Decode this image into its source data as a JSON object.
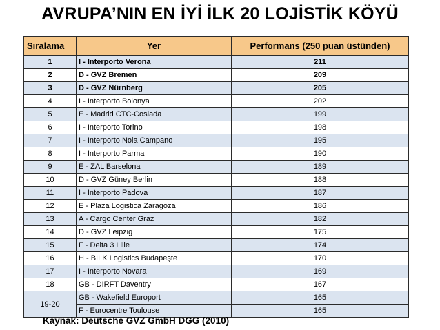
{
  "title": "AVRUPA’NIN EN İYİ İLK 20 LOJİSTİK KÖYÜ",
  "table": {
    "headers": {
      "rank": "Sıralama",
      "place": "Yer",
      "performance": "Performans (250 puan üstünden)"
    },
    "rows": [
      {
        "rank": "1",
        "place": "I - Interporto Verona",
        "performance": "211"
      },
      {
        "rank": "2",
        "place": "D - GVZ Bremen",
        "performance": "209"
      },
      {
        "rank": "3",
        "place": "D - GVZ Nürnberg",
        "performance": "205"
      },
      {
        "rank": "4",
        "place": "I - Interporto Bolonya",
        "performance": "202"
      },
      {
        "rank": "5",
        "place": "E - Madrid CTC-Coslada",
        "performance": "199"
      },
      {
        "rank": "6",
        "place": "I - Interporto Torino",
        "performance": "198"
      },
      {
        "rank": "7",
        "place": "I - Interporto Nola Campano",
        "performance": "195"
      },
      {
        "rank": "8",
        "place": "I - Interporto Parma",
        "performance": "190"
      },
      {
        "rank": "9",
        "place": "E - ZAL Barselona",
        "performance": "189"
      },
      {
        "rank": "10",
        "place": "D - GVZ Güney Berlin",
        "performance": "188"
      },
      {
        "rank": "11",
        "place": "I - Interporto Padova",
        "performance": "187"
      },
      {
        "rank": "12",
        "place": "E - Plaza Logistica Zaragoza",
        "performance": "186"
      },
      {
        "rank": "13",
        "place": "A - Cargo Center Graz",
        "performance": "182"
      },
      {
        "rank": "14",
        "place": "D - GVZ Leipzig",
        "performance": "175"
      },
      {
        "rank": "15",
        "place": "F - Delta 3 Lille",
        "performance": "174"
      },
      {
        "rank": "16",
        "place": "H - BILK Logistics Budapeşte",
        "performance": "170"
      },
      {
        "rank": "17",
        "place": "I - Interporto Novara",
        "performance": "169"
      },
      {
        "rank": "18",
        "place": "GB - DIRFT Daventry",
        "performance": "167"
      }
    ],
    "tied": {
      "rank": "19-20",
      "rows": [
        {
          "place": "GB - Wakefield Europort",
          "performance": "165"
        },
        {
          "place": "F - Eurocentre Toulouse",
          "performance": "165"
        }
      ]
    }
  },
  "source": "Kaynak: Deutsche GVZ GmbH DGG (2010)"
}
